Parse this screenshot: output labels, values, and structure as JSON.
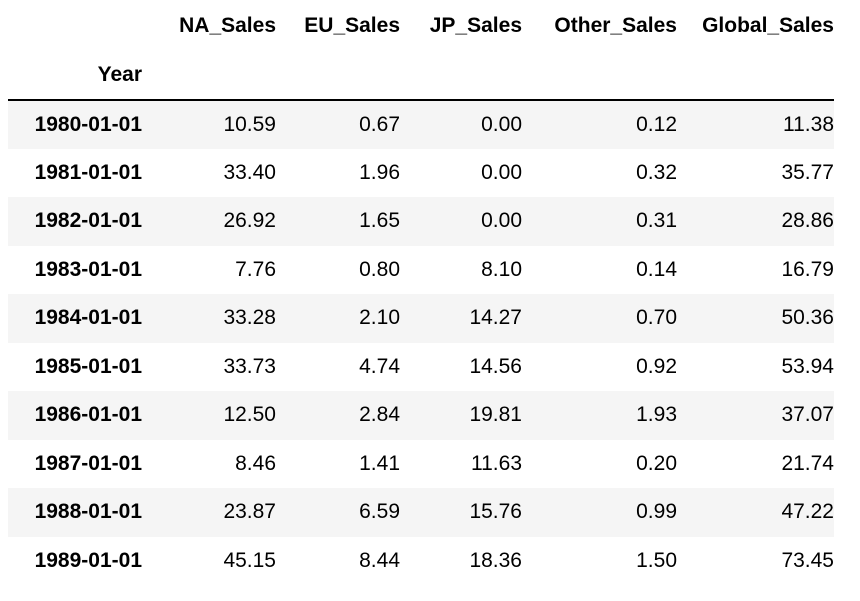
{
  "table": {
    "index_name": "Year",
    "columns": [
      "NA_Sales",
      "EU_Sales",
      "JP_Sales",
      "Other_Sales",
      "Global_Sales"
    ],
    "rows": [
      {
        "year": "1980-01-01",
        "values": [
          "10.59",
          "0.67",
          "0.00",
          "0.12",
          "11.38"
        ]
      },
      {
        "year": "1981-01-01",
        "values": [
          "33.40",
          "1.96",
          "0.00",
          "0.32",
          "35.77"
        ]
      },
      {
        "year": "1982-01-01",
        "values": [
          "26.92",
          "1.65",
          "0.00",
          "0.31",
          "28.86"
        ]
      },
      {
        "year": "1983-01-01",
        "values": [
          "7.76",
          "0.80",
          "8.10",
          "0.14",
          "16.79"
        ]
      },
      {
        "year": "1984-01-01",
        "values": [
          "33.28",
          "2.10",
          "14.27",
          "0.70",
          "50.36"
        ]
      },
      {
        "year": "1985-01-01",
        "values": [
          "33.73",
          "4.74",
          "14.56",
          "0.92",
          "53.94"
        ]
      },
      {
        "year": "1986-01-01",
        "values": [
          "12.50",
          "2.84",
          "19.81",
          "1.93",
          "37.07"
        ]
      },
      {
        "year": "1987-01-01",
        "values": [
          "8.46",
          "1.41",
          "11.63",
          "0.20",
          "21.74"
        ]
      },
      {
        "year": "1988-01-01",
        "values": [
          "23.87",
          "6.59",
          "15.76",
          "0.99",
          "47.22"
        ]
      },
      {
        "year": "1989-01-01",
        "values": [
          "45.15",
          "8.44",
          "18.36",
          "1.50",
          "73.45"
        ]
      }
    ]
  }
}
